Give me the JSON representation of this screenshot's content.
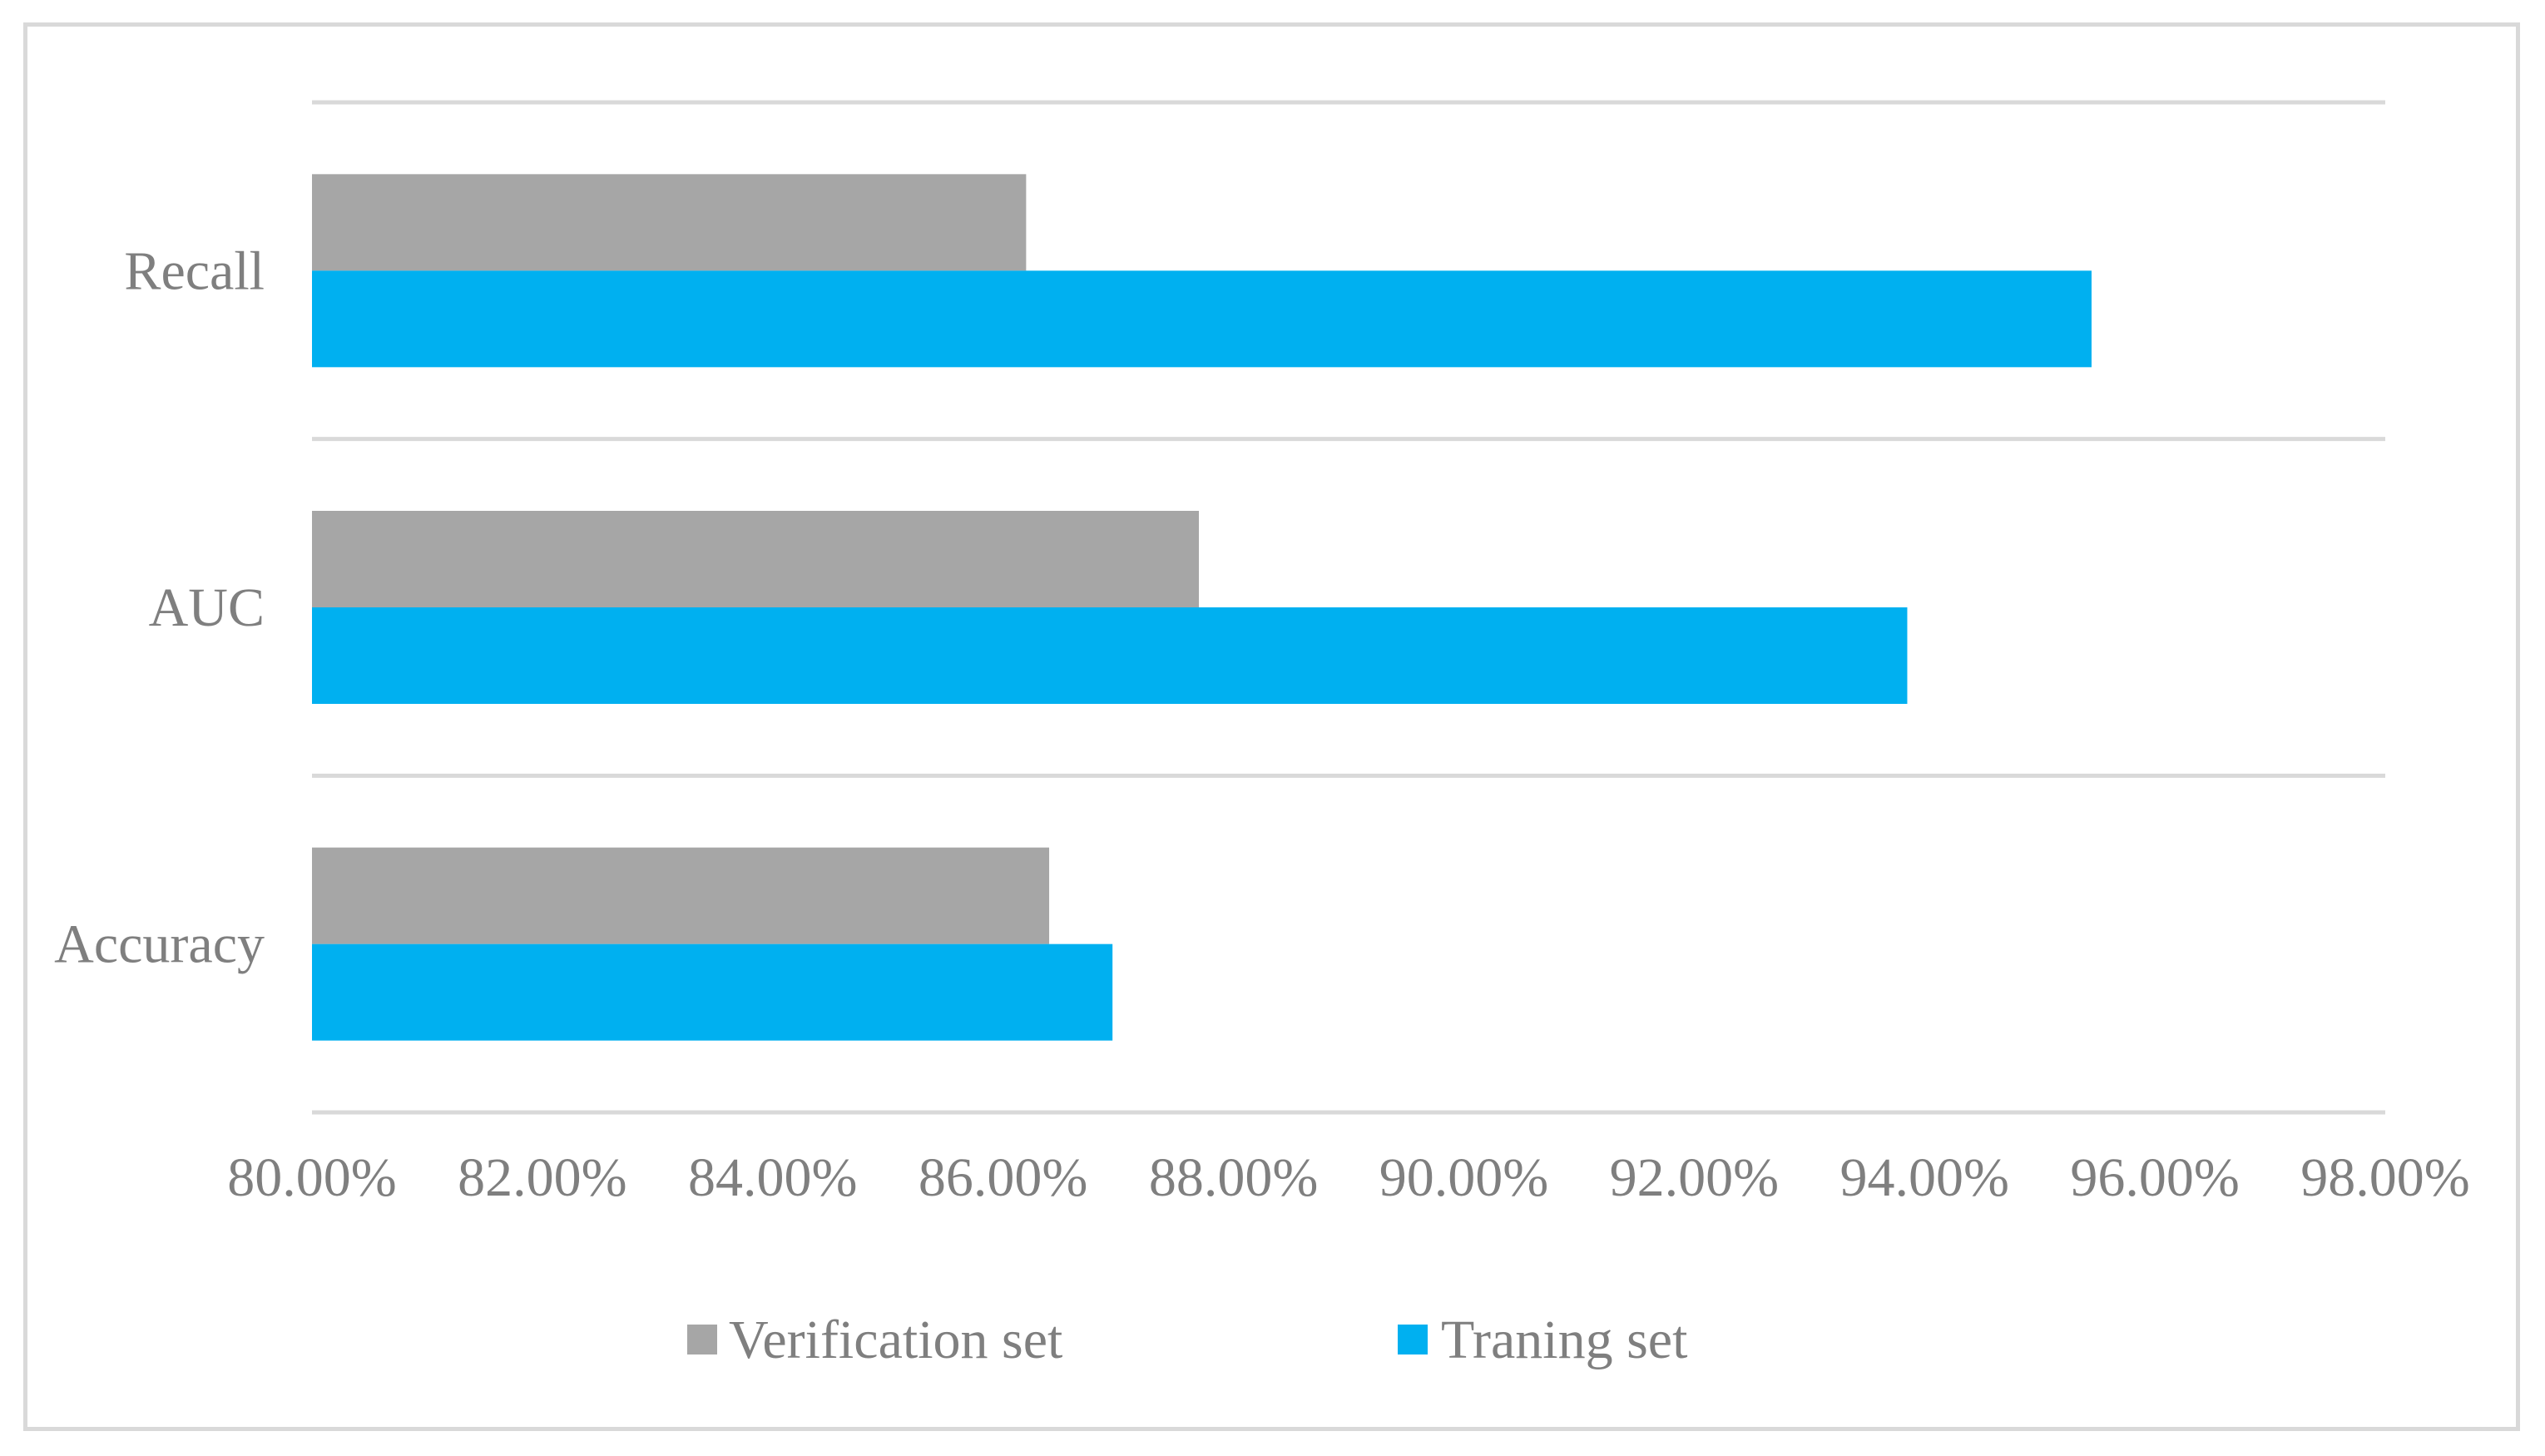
{
  "chart_data": {
    "type": "bar",
    "orientation": "horizontal",
    "categories": [
      "Accuracy",
      "AUC",
      "Recall"
    ],
    "series": [
      {
        "name": "Verification set",
        "color": "#a6a6a6",
        "values": [
          86.4,
          87.7,
          86.2
        ]
      },
      {
        "name": "Traning set",
        "color": "#00b0f0",
        "values": [
          86.95,
          93.85,
          95.45
        ]
      }
    ],
    "xlim": [
      80,
      98
    ],
    "xticks": [
      "80.00%",
      "82.00%",
      "84.00%",
      "86.00%",
      "88.00%",
      "90.00%",
      "92.00%",
      "94.00%",
      "96.00%",
      "98.00%"
    ],
    "grid": true,
    "legend_position": "bottom",
    "title": "",
    "xlabel": "",
    "ylabel": ""
  }
}
